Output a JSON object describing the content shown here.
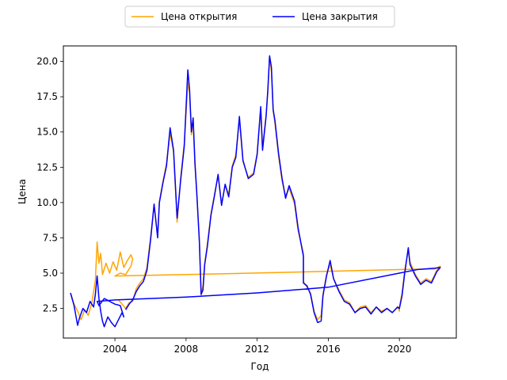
{
  "chart_data": {
    "type": "line",
    "title": "",
    "xlabel": "Год",
    "ylabel": "Цена",
    "xlim": [
      2001.1,
      2023.2
    ],
    "ylim": [
      0.4,
      21.1
    ],
    "xticks": [
      2004,
      2008,
      2012,
      2016,
      2020
    ],
    "yticks": [
      2.5,
      5.0,
      7.5,
      10.0,
      12.5,
      15.0,
      17.5,
      20.0
    ],
    "ytick_labels": [
      "2.5",
      "5.0",
      "7.5",
      "10.0",
      "12.5",
      "15.0",
      "17.5",
      "20.0"
    ],
    "grid": false,
    "legend": "top-center",
    "series": [
      {
        "name": "Цена открытия",
        "color": "#ffa500",
        "points": [
          [
            2001.5,
            3.6
          ],
          [
            2001.7,
            2.8
          ],
          [
            2001.9,
            2.3
          ],
          [
            2002.1,
            1.7
          ],
          [
            2002.3,
            2.4
          ],
          [
            2002.5,
            2.0
          ],
          [
            2002.7,
            2.9
          ],
          [
            2002.9,
            4.5
          ],
          [
            2003.0,
            7.2
          ],
          [
            2003.1,
            5.7
          ],
          [
            2003.2,
            6.4
          ],
          [
            2003.3,
            4.9
          ],
          [
            2003.5,
            5.7
          ],
          [
            2003.7,
            5.0
          ],
          [
            2003.9,
            5.8
          ],
          [
            2004.1,
            5.2
          ],
          [
            2004.3,
            6.5
          ],
          [
            2004.5,
            5.4
          ],
          [
            2004.7,
            5.9
          ],
          [
            2004.9,
            6.3
          ],
          [
            2005.0,
            6.0
          ],
          [
            2004.9,
            5.5
          ],
          [
            2004.6,
            4.9
          ],
          [
            2004.3,
            5.0
          ],
          [
            2004.0,
            4.8
          ],
          [
            2010.0,
            4.95
          ],
          [
            2015.0,
            5.1
          ],
          [
            2020.0,
            5.25
          ],
          [
            2022.0,
            5.3
          ],
          [
            2022.3,
            5.5
          ],
          [
            2022.1,
            5.2
          ],
          [
            2021.8,
            4.4
          ],
          [
            2021.5,
            4.6
          ],
          [
            2021.2,
            4.3
          ],
          [
            2020.9,
            4.9
          ],
          [
            2020.6,
            5.8
          ],
          [
            2020.5,
            6.6
          ],
          [
            2020.3,
            5.2
          ],
          [
            2020.15,
            3.6
          ],
          [
            2020.0,
            2.6
          ],
          [
            2020.0,
            2.3
          ],
          [
            2019.9,
            2.6
          ],
          [
            2019.6,
            2.2
          ],
          [
            2019.3,
            2.5
          ],
          [
            2019.0,
            2.3
          ],
          [
            2018.7,
            2.6
          ],
          [
            2018.4,
            2.2
          ],
          [
            2018.1,
            2.7
          ],
          [
            2017.8,
            2.6
          ],
          [
            2017.5,
            2.2
          ],
          [
            2017.2,
            2.9
          ],
          [
            2016.9,
            3.1
          ],
          [
            2016.6,
            3.8
          ],
          [
            2016.3,
            4.6
          ],
          [
            2016.1,
            5.6
          ],
          [
            2015.9,
            4.9
          ],
          [
            2015.7,
            3.5
          ],
          [
            2015.6,
            2.0
          ],
          [
            2015.4,
            1.7
          ],
          [
            2015.2,
            2.3
          ],
          [
            2015.0,
            3.6
          ],
          [
            2014.8,
            4.0
          ],
          [
            2014.6,
            4.4
          ],
          [
            2014.6,
            6.4
          ],
          [
            2014.3,
            8.0
          ],
          [
            2014.1,
            9.9
          ],
          [
            2013.8,
            11.0
          ],
          [
            2013.6,
            10.5
          ],
          [
            2013.4,
            11.5
          ],
          [
            2013.2,
            13.3
          ],
          [
            2013.0,
            15.6
          ],
          [
            2012.9,
            16.5
          ],
          [
            2012.8,
            19.3
          ],
          [
            2012.7,
            20.3
          ],
          [
            2012.6,
            17.8
          ],
          [
            2012.5,
            16.2
          ],
          [
            2012.3,
            13.9
          ],
          [
            2012.2,
            16.6
          ],
          [
            2012.0,
            13.5
          ],
          [
            2011.8,
            12.1
          ],
          [
            2011.5,
            11.8
          ],
          [
            2011.2,
            12.9
          ],
          [
            2011.0,
            15.9
          ],
          [
            2010.8,
            13.4
          ],
          [
            2010.6,
            12.6
          ],
          [
            2010.4,
            10.6
          ],
          [
            2010.2,
            11.2
          ],
          [
            2010.0,
            9.9
          ],
          [
            2009.8,
            11.9
          ],
          [
            2009.6,
            10.6
          ],
          [
            2009.4,
            9.2
          ],
          [
            2009.2,
            7.1
          ],
          [
            2009.05,
            5.7
          ],
          [
            2008.95,
            4.1
          ],
          [
            2008.85,
            3.4
          ],
          [
            2008.75,
            7.3
          ],
          [
            2008.6,
            10.7
          ],
          [
            2008.5,
            12.6
          ],
          [
            2008.4,
            15.8
          ],
          [
            2008.3,
            14.8
          ],
          [
            2008.2,
            17.8
          ],
          [
            2008.1,
            18.5
          ],
          [
            2007.9,
            14.2
          ],
          [
            2007.7,
            11.8
          ],
          [
            2007.5,
            8.6
          ],
          [
            2007.3,
            13.6
          ],
          [
            2007.1,
            14.9
          ],
          [
            2006.9,
            12.8
          ],
          [
            2006.7,
            11.5
          ],
          [
            2006.5,
            10.1
          ],
          [
            2006.4,
            7.8
          ],
          [
            2006.2,
            9.7
          ],
          [
            2006.0,
            7.5
          ],
          [
            2005.8,
            5.4
          ],
          [
            2005.6,
            4.6
          ],
          [
            2005.4,
            4.3
          ],
          [
            2005.2,
            3.9
          ],
          [
            2005.0,
            3.0
          ],
          [
            2004.8,
            2.9
          ],
          [
            2004.6,
            2.5
          ],
          [
            2004.4,
            2.8
          ],
          [
            2004.2,
            3.1
          ]
        ]
      },
      {
        "name": "Цена закрытия",
        "color": "#0000ff",
        "points": [
          [
            2001.5,
            3.6
          ],
          [
            2001.7,
            2.7
          ],
          [
            2001.8,
            2.0
          ],
          [
            2001.9,
            1.3
          ],
          [
            2002.0,
            1.8
          ],
          [
            2002.2,
            2.5
          ],
          [
            2002.4,
            2.2
          ],
          [
            2002.6,
            3.0
          ],
          [
            2002.8,
            2.6
          ],
          [
            2002.9,
            3.5
          ],
          [
            2003.0,
            4.8
          ],
          [
            2003.1,
            3.2
          ],
          [
            2003.2,
            2.3
          ],
          [
            2003.3,
            1.6
          ],
          [
            2003.4,
            1.2
          ],
          [
            2003.6,
            1.9
          ],
          [
            2003.8,
            1.5
          ],
          [
            2004.0,
            1.2
          ],
          [
            2004.2,
            1.7
          ],
          [
            2004.4,
            2.2
          ],
          [
            2004.5,
            1.9
          ],
          [
            2004.3,
            2.7
          ],
          [
            2004.0,
            2.8
          ],
          [
            2003.7,
            3.0
          ],
          [
            2003.4,
            3.2
          ],
          [
            2003.1,
            2.7
          ],
          [
            2003.0,
            3.0
          ],
          [
            2004.0,
            3.1
          ],
          [
            2008.0,
            3.3
          ],
          [
            2012.0,
            3.6
          ],
          [
            2016.0,
            4.0
          ],
          [
            2020.0,
            5.0
          ],
          [
            2021.0,
            5.25
          ],
          [
            2022.0,
            5.35
          ],
          [
            2022.3,
            5.4
          ],
          [
            2022.1,
            5.1
          ],
          [
            2021.8,
            4.3
          ],
          [
            2021.5,
            4.5
          ],
          [
            2021.2,
            4.2
          ],
          [
            2020.9,
            4.8
          ],
          [
            2020.6,
            5.6
          ],
          [
            2020.5,
            6.8
          ],
          [
            2020.3,
            5.0
          ],
          [
            2020.15,
            3.4
          ],
          [
            2020.0,
            2.5
          ],
          [
            2019.9,
            2.6
          ],
          [
            2019.6,
            2.2
          ],
          [
            2019.3,
            2.5
          ],
          [
            2019.0,
            2.2
          ],
          [
            2018.7,
            2.6
          ],
          [
            2018.4,
            2.1
          ],
          [
            2018.1,
            2.6
          ],
          [
            2017.8,
            2.5
          ],
          [
            2017.5,
            2.2
          ],
          [
            2017.2,
            2.8
          ],
          [
            2016.9,
            3.0
          ],
          [
            2016.6,
            3.7
          ],
          [
            2016.3,
            4.6
          ],
          [
            2016.1,
            5.9
          ],
          [
            2015.9,
            4.8
          ],
          [
            2015.7,
            3.4
          ],
          [
            2015.6,
            1.6
          ],
          [
            2015.4,
            1.5
          ],
          [
            2015.2,
            2.2
          ],
          [
            2015.0,
            3.5
          ],
          [
            2014.8,
            4.1
          ],
          [
            2014.6,
            4.3
          ],
          [
            2014.6,
            6.2
          ],
          [
            2014.3,
            8.2
          ],
          [
            2014.1,
            10.1
          ],
          [
            2013.8,
            11.2
          ],
          [
            2013.6,
            10.3
          ],
          [
            2013.4,
            11.7
          ],
          [
            2013.2,
            13.5
          ],
          [
            2013.0,
            15.8
          ],
          [
            2012.9,
            16.6
          ],
          [
            2012.8,
            19.6
          ],
          [
            2012.7,
            20.4
          ],
          [
            2012.6,
            18.0
          ],
          [
            2012.5,
            16.1
          ],
          [
            2012.3,
            13.7
          ],
          [
            2012.2,
            16.8
          ],
          [
            2012.0,
            13.4
          ],
          [
            2011.8,
            12.0
          ],
          [
            2011.5,
            11.7
          ],
          [
            2011.2,
            13.0
          ],
          [
            2011.0,
            16.1
          ],
          [
            2010.8,
            13.2
          ],
          [
            2010.6,
            12.5
          ],
          [
            2010.4,
            10.4
          ],
          [
            2010.2,
            11.3
          ],
          [
            2010.0,
            9.8
          ],
          [
            2009.8,
            12.0
          ],
          [
            2009.6,
            10.5
          ],
          [
            2009.4,
            9.1
          ],
          [
            2009.2,
            6.9
          ],
          [
            2009.05,
            5.6
          ],
          [
            2008.95,
            3.8
          ],
          [
            2008.85,
            3.5
          ],
          [
            2008.75,
            7.2
          ],
          [
            2008.6,
            10.8
          ],
          [
            2008.5,
            12.8
          ],
          [
            2008.4,
            16.0
          ],
          [
            2008.3,
            15.0
          ],
          [
            2008.2,
            18.0
          ],
          [
            2008.1,
            19.4
          ],
          [
            2007.9,
            14.0
          ],
          [
            2007.7,
            11.6
          ],
          [
            2007.5,
            8.9
          ],
          [
            2007.3,
            13.7
          ],
          [
            2007.1,
            15.3
          ],
          [
            2006.9,
            12.6
          ],
          [
            2006.7,
            11.4
          ],
          [
            2006.5,
            10.0
          ],
          [
            2006.4,
            7.5
          ],
          [
            2006.2,
            9.9
          ],
          [
            2006.0,
            7.3
          ],
          [
            2005.8,
            5.2
          ],
          [
            2005.6,
            4.4
          ],
          [
            2005.4,
            4.1
          ],
          [
            2005.2,
            3.7
          ],
          [
            2005.0,
            3.1
          ],
          [
            2004.8,
            2.8
          ],
          [
            2004.6,
            2.4
          ]
        ]
      }
    ]
  }
}
